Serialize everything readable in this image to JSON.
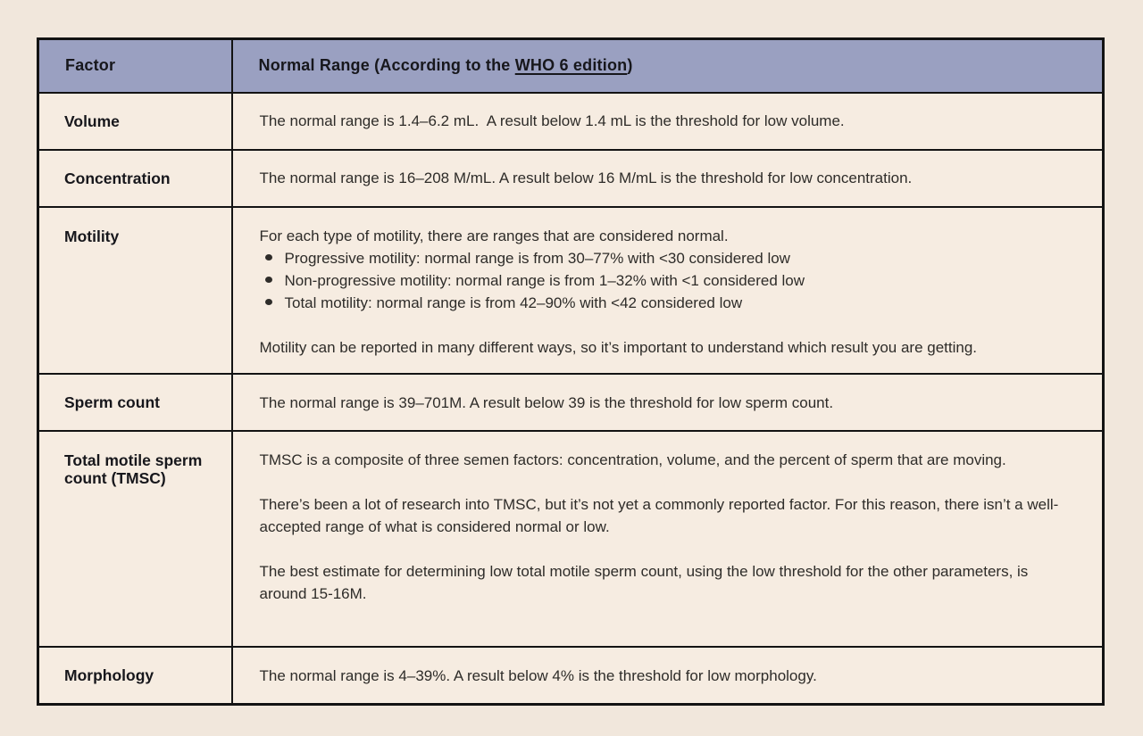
{
  "page": {
    "background": "#f1e7dc"
  },
  "table": {
    "colors": {
      "header_bg": "#9aa0c1",
      "cell_bg": "#f6ece1",
      "border": "#131313",
      "heading_text": "#17171c",
      "body_text": "#2e2c29"
    },
    "header": {
      "factor_label": "Factor",
      "range_prefix": "Normal Range (According to the ",
      "range_link_text": "WHO 6 edition",
      "range_suffix": ")"
    },
    "rows": [
      {
        "factor": "Volume",
        "text": "The normal range is 1.4–6.2 mL.  A result below 1.4 mL is the threshold for low volume."
      },
      {
        "factor": "Concentration",
        "text": "The normal range is 16–208 M/mL. A result below 16 M/mL is the threshold for low concentration."
      },
      {
        "factor": "Motility",
        "intro": "For each type of motility, there are ranges that are considered normal.",
        "bullets": [
          "Progressive motility: normal range is from 30–77% with <30 considered low",
          "Non-progressive motility: normal range is from 1–32% with <1 considered low",
          "Total motility: normal range is from 42–90% with <42 considered low"
        ],
        "outro": "Motility can be reported in many different ways, so it’s important to understand which result you are getting."
      },
      {
        "factor": "Sperm count",
        "text": "The normal range is 39–701M. A result below 39 is the threshold for low sperm count."
      },
      {
        "factor": "Total motile sperm count (TMSC)",
        "paragraphs": [
          "TMSC is a composite of three semen factors: concentration, volume, and the percent of sperm that are moving.",
          "There’s been a lot of research into TMSC, but it’s not yet a commonly reported factor. For this reason, there isn’t a well-accepted range of what is considered normal or low.",
          "The best estimate for determining low total motile sperm count, using the low threshold for the other parameters, is around 15-16M."
        ]
      },
      {
        "factor": "Morphology",
        "text": "The normal range is 4–39%. A result below 4% is the threshold for low morphology."
      }
    ]
  }
}
